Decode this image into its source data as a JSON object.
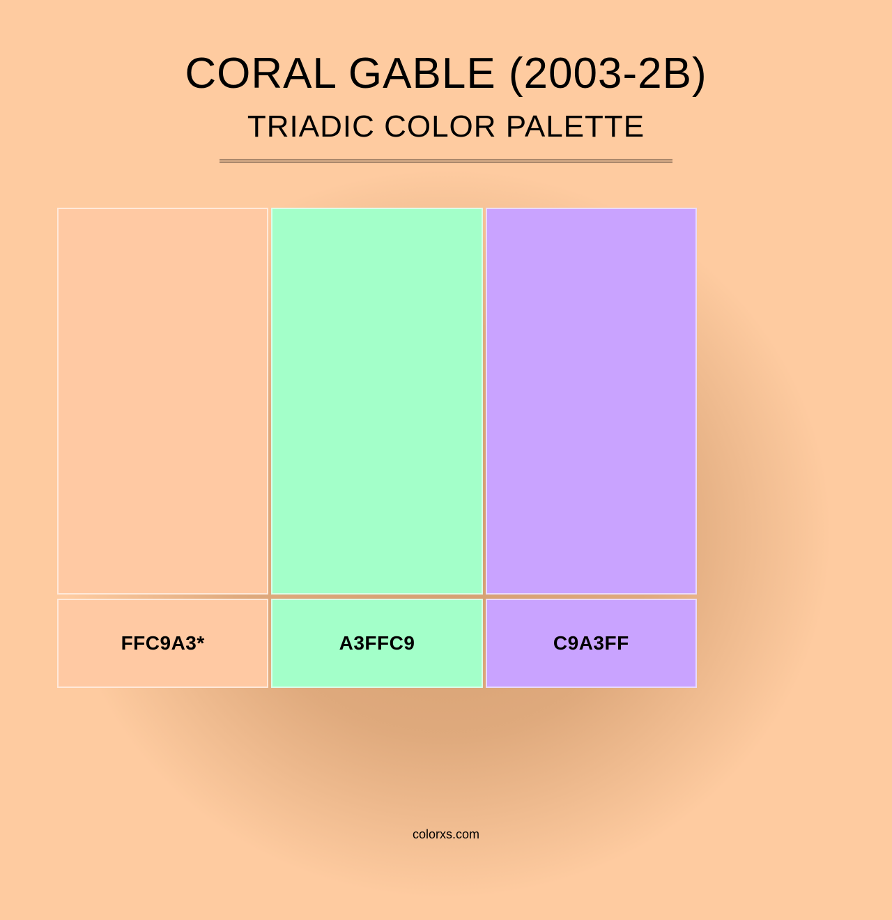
{
  "title": "CORAL GABLE (2003-2B)",
  "subtitle": "TRIADIC COLOR PALETTE",
  "background_color": "#fecba0",
  "swatches": [
    {
      "color": "#ffc9a3",
      "label": "FFC9A3*"
    },
    {
      "color": "#a3ffc9",
      "label": "A3FFC9"
    },
    {
      "color": "#c9a3ff",
      "label": "C9A3FF"
    }
  ],
  "swatch_border_color": "rgba(255,255,255,0.6)",
  "footer": "colorxs.com",
  "title_fontsize": 62,
  "subtitle_fontsize": 44,
  "label_fontsize": 28,
  "divider_width": 650
}
